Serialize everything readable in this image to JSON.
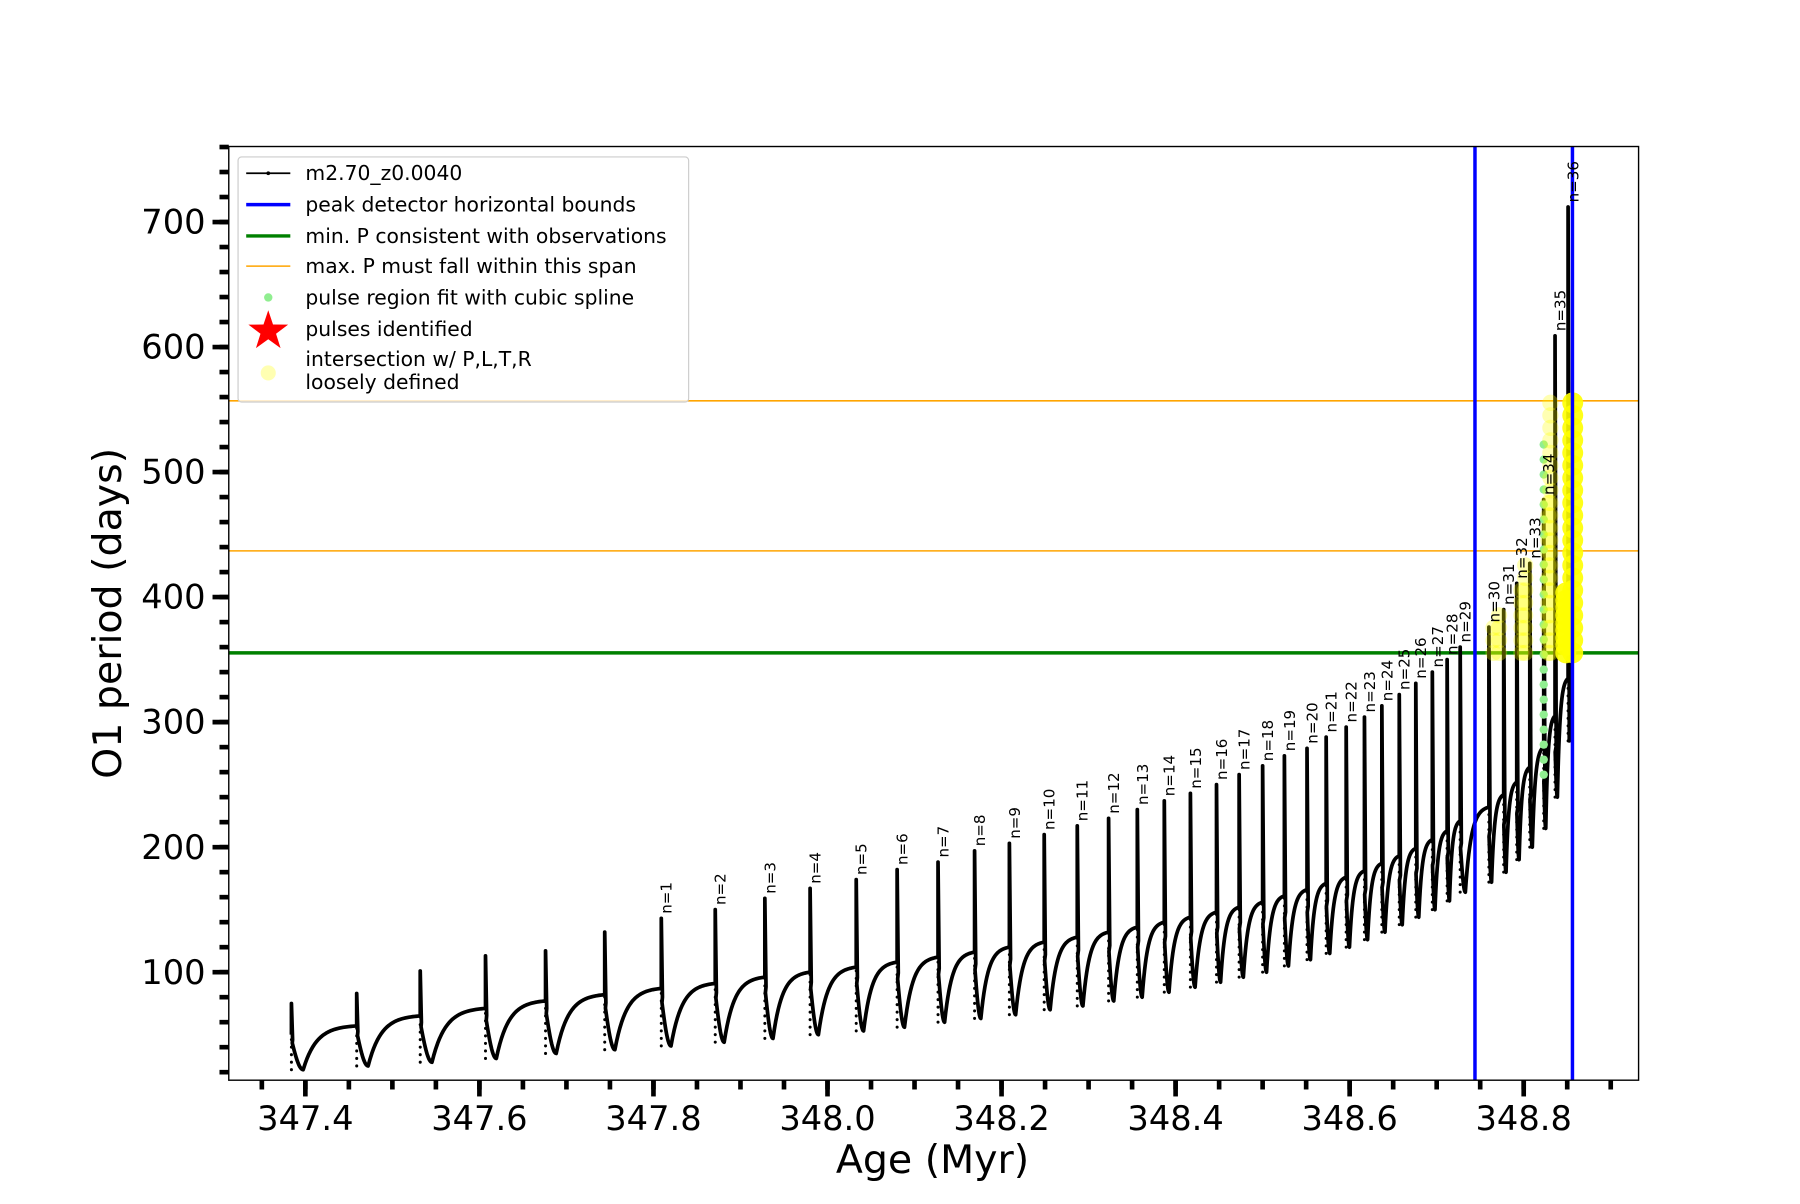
{
  "chart_data": {
    "type": "line",
    "title": "",
    "xlabel": "Age (Myr)",
    "ylabel": "O1 period (days)",
    "xlim": [
      347.312,
      348.932
    ],
    "ylim": [
      13.6,
      760.4
    ],
    "xticks": [
      "347.4",
      "347.6",
      "347.8",
      "348.0",
      "348.2",
      "348.4",
      "348.6",
      "348.8"
    ],
    "yticks": [
      "100",
      "200",
      "300",
      "400",
      "500",
      "600",
      "700"
    ],
    "x_minor_step": 0.05,
    "y_minor_step": 20,
    "grid": false,
    "legend_placement": "upper-left",
    "legend": [
      {
        "label": "m2.70_z0.0040",
        "kind": "line-marker",
        "color": "#000000"
      },
      {
        "label": "peak detector horizontal bounds",
        "kind": "line",
        "color": "#0000ff"
      },
      {
        "label": "min. P consistent with observations",
        "kind": "line",
        "color": "#008000"
      },
      {
        "label": "max. P must fall within this span",
        "kind": "thin-line",
        "color": "#ffa500"
      },
      {
        "label": "pulse region fit with cubic spline",
        "kind": "dot",
        "color": "#90ee90"
      },
      {
        "label": "pulses identified",
        "kind": "star",
        "color": "#ff0000"
      },
      {
        "label": "intersection w/ P,L,T,R",
        "label2": "loosely defined",
        "kind": "big-dot",
        "color": "#ffff00"
      }
    ],
    "vertical_lines": {
      "label": "peak detector horizontal bounds",
      "x": [
        348.744,
        348.856
      ],
      "color": "#0000ff"
    },
    "min_line": {
      "y": 355.4,
      "color": "#008000"
    },
    "max_span": {
      "y": [
        437,
        557
      ],
      "color": "#ffa500"
    },
    "series": {
      "name": "m2.70_z0.0040",
      "color": "#000000",
      "start_value": 50,
      "pulses": [
        {
          "label": "",
          "age": 347.384,
          "peak": 75,
          "plateau": 50,
          "minimum": 22
        },
        {
          "label": "",
          "age": 347.459,
          "peak": 83,
          "plateau": 57,
          "minimum": 25
        },
        {
          "label": "",
          "age": 347.532,
          "peak": 101,
          "plateau": 65,
          "minimum": 28
        },
        {
          "label": "",
          "age": 347.607,
          "peak": 113,
          "plateau": 71,
          "minimum": 31
        },
        {
          "label": "",
          "age": 347.676,
          "peak": 117,
          "plateau": 77,
          "minimum": 35
        },
        {
          "label": "",
          "age": 347.744,
          "peak": 132,
          "plateau": 82,
          "minimum": 38
        },
        {
          "label": "n=1",
          "age": 347.809,
          "peak": 143,
          "plateau": 87,
          "minimum": 41
        },
        {
          "label": "n=2",
          "age": 347.871,
          "peak": 150,
          "plateau": 91,
          "minimum": 44
        },
        {
          "label": "n=3",
          "age": 347.928,
          "peak": 159,
          "plateau": 96,
          "minimum": 47
        },
        {
          "label": "n=4",
          "age": 347.98,
          "peak": 167,
          "plateau": 100,
          "minimum": 50
        },
        {
          "label": "n=5",
          "age": 348.033,
          "peak": 174,
          "plateau": 104,
          "minimum": 53
        },
        {
          "label": "n=6",
          "age": 348.08,
          "peak": 182,
          "plateau": 108,
          "minimum": 56
        },
        {
          "label": "n=7",
          "age": 348.127,
          "peak": 188,
          "plateau": 112,
          "minimum": 60
        },
        {
          "label": "n=8",
          "age": 348.169,
          "peak": 197,
          "plateau": 116,
          "minimum": 63
        },
        {
          "label": "n=9",
          "age": 348.209,
          "peak": 203,
          "plateau": 120,
          "minimum": 66
        },
        {
          "label": "n=10",
          "age": 348.249,
          "peak": 210,
          "plateau": 124,
          "minimum": 70
        },
        {
          "label": "n=11",
          "age": 348.287,
          "peak": 217,
          "plateau": 128,
          "minimum": 73
        },
        {
          "label": "n=12",
          "age": 348.323,
          "peak": 223,
          "plateau": 132,
          "minimum": 77
        },
        {
          "label": "n=13",
          "age": 348.356,
          "peak": 230,
          "plateau": 136,
          "minimum": 80
        },
        {
          "label": "n=14",
          "age": 348.387,
          "peak": 237,
          "plateau": 140,
          "minimum": 84
        },
        {
          "label": "n=15",
          "age": 348.417,
          "peak": 243,
          "plateau": 144,
          "minimum": 88
        },
        {
          "label": "n=16",
          "age": 348.447,
          "peak": 250,
          "plateau": 148,
          "minimum": 92
        },
        {
          "label": "n=17",
          "age": 348.473,
          "peak": 258,
          "plateau": 152,
          "minimum": 96
        },
        {
          "label": "n=18",
          "age": 348.5,
          "peak": 265,
          "plateau": 156,
          "minimum": 100
        },
        {
          "label": "n=19",
          "age": 348.525,
          "peak": 273,
          "plateau": 161,
          "minimum": 105
        },
        {
          "label": "n=20",
          "age": 348.551,
          "peak": 279,
          "plateau": 166,
          "minimum": 110
        },
        {
          "label": "n=21",
          "age": 348.573,
          "peak": 288,
          "plateau": 171,
          "minimum": 115
        },
        {
          "label": "n=22",
          "age": 348.596,
          "peak": 296,
          "plateau": 176,
          "minimum": 120
        },
        {
          "label": "n=23",
          "age": 348.617,
          "peak": 304,
          "plateau": 181,
          "minimum": 126
        },
        {
          "label": "n=24",
          "age": 348.637,
          "peak": 313,
          "plateau": 187,
          "minimum": 132
        },
        {
          "label": "n=25",
          "age": 348.657,
          "peak": 322,
          "plateau": 193,
          "minimum": 138
        },
        {
          "label": "n=26",
          "age": 348.676,
          "peak": 331,
          "plateau": 199,
          "minimum": 144
        },
        {
          "label": "n=27",
          "age": 348.695,
          "peak": 340,
          "plateau": 206,
          "minimum": 150
        },
        {
          "label": "n=28",
          "age": 348.712,
          "peak": 350,
          "plateau": 213,
          "minimum": 157
        },
        {
          "label": "n=29",
          "age": 348.727,
          "peak": 360,
          "plateau": 221,
          "minimum": 164
        },
        {
          "label": "n=30",
          "age": 348.76,
          "peak": 376,
          "plateau": 232,
          "minimum": 172
        },
        {
          "label": "n=31",
          "age": 348.777,
          "peak": 390,
          "plateau": 242,
          "minimum": 180
        },
        {
          "label": "n=32",
          "age": 348.792,
          "peak": 411,
          "plateau": 252,
          "minimum": 190
        },
        {
          "label": "n=33",
          "age": 348.807,
          "peak": 427,
          "plateau": 264,
          "minimum": 200
        },
        {
          "label": "n=34",
          "age": 348.823,
          "peak": 478,
          "plateau": 280,
          "minimum": 215
        },
        {
          "label": "n=35",
          "age": 348.836,
          "peak": 609,
          "plateau": 305,
          "minimum": 240
        },
        {
          "label": "n=36",
          "age": 348.851,
          "peak": 712,
          "plateau": 335,
          "minimum": 285
        }
      ],
      "end_value": 330
    },
    "spline_fit_points": {
      "color": "#90ee90",
      "age": 348.823,
      "y_range": [
        258,
        527
      ]
    },
    "intersections": {
      "color": "#ffff00",
      "y_range": [
        355.4,
        557
      ]
    }
  }
}
